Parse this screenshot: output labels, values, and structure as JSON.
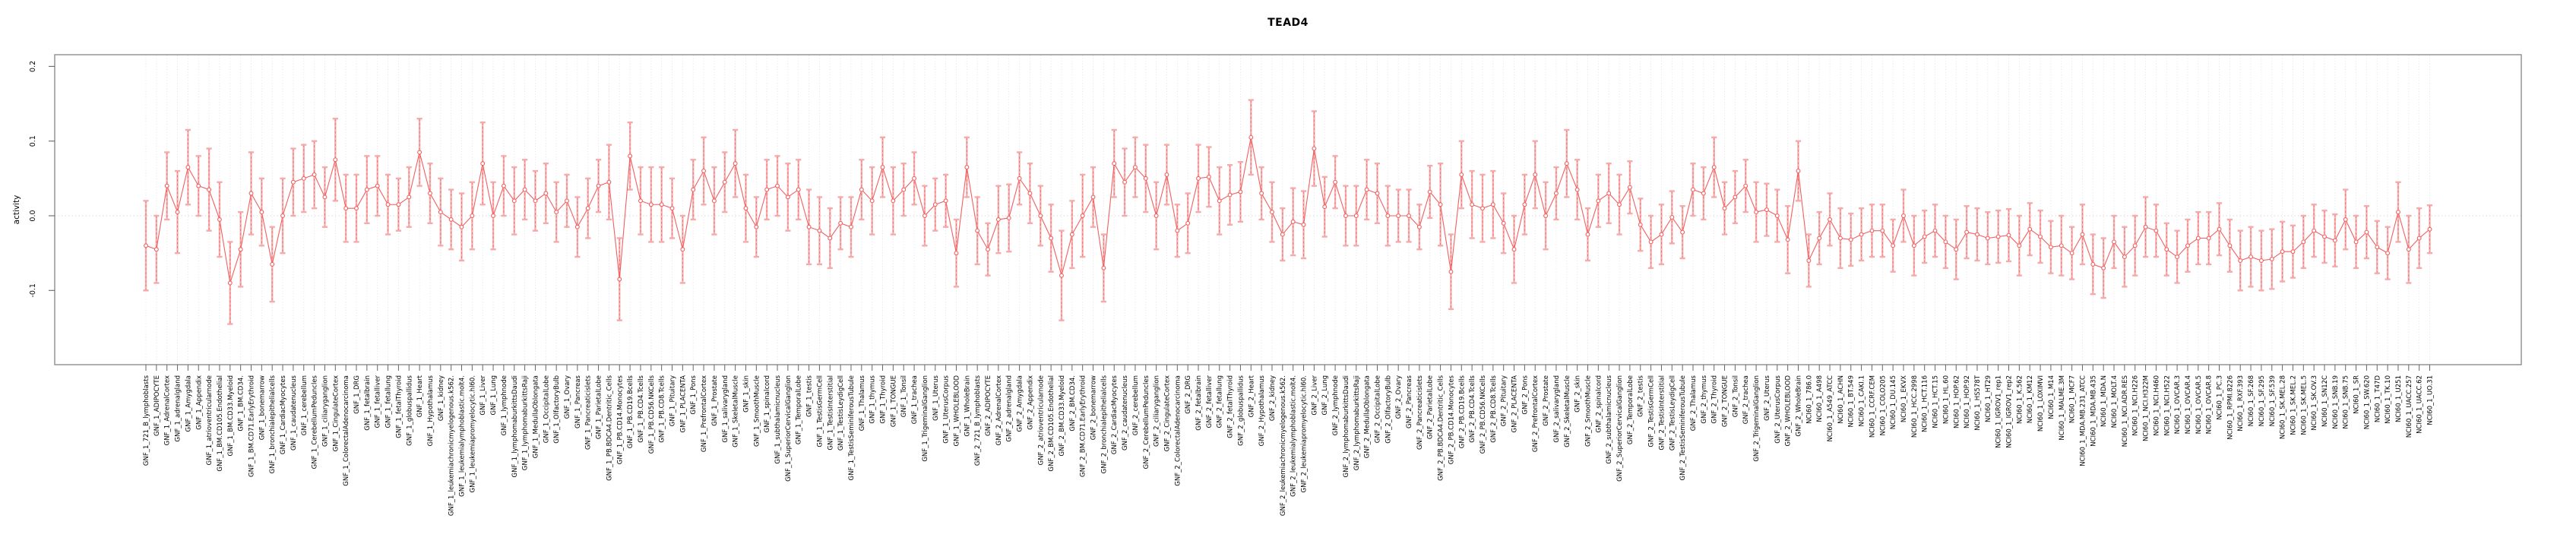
{
  "title": "TEAD4",
  "chart_data": {
    "type": "line",
    "title": "TEAD4",
    "xlabel": "",
    "ylabel": "activity",
    "ylim": [
      -0.2,
      0.215
    ],
    "yticks": [
      0.2,
      0.1,
      0.0,
      -0.1
    ],
    "ytick_labels": [
      "0.2",
      "0.1",
      "0.0",
      "-0.1"
    ],
    "zero_line": true,
    "grid": "vertical dotted gridline at every sample; dotted horizontal line at 0.0",
    "legend": "none",
    "marker": "open-circle",
    "error_bars": true,
    "colors": {
      "series": "#f25f5f",
      "error_pale": "#f6aaaa",
      "grid": "#dfdfdf",
      "zero": "#d8d8d8",
      "border": "#848484",
      "tick": "#666666",
      "text": "#000000",
      "background": "#ffffff"
    },
    "categories": [
      "GNF_1_721_B_lymphoblasts",
      "GNF_1_ADIPOCYTE",
      "GNF_1_AdrenalCortex",
      "GNF_1_adrenalgland",
      "GNF_1_Amygdala",
      "GNF_1_Appendix",
      "GNF_1_atrioventricularnode",
      "GNF_1_BM.CD105.Endothelial",
      "GNF_1_BM.CD33.Myeloid",
      "GNF_1_BM.CD34.",
      "GNF_1_BM.CD71.EarlyErythroid",
      "GNF_1_bonemarrow",
      "GNF_1_bronchialepithelialcells",
      "GNF_1_CardiacMyocytes",
      "GNF_1_caudatenucleus",
      "GNF_1_cerebellum",
      "GNF_1_CerebellumPeduncles",
      "GNF_1_ciliaryganglion",
      "GNF_1_CingulateCortex",
      "GNF_1_ColorectalAdenocarcinoma",
      "GNF_1_DRG",
      "GNF_1_fetalbrain",
      "GNF_1_fetalliver",
      "GNF_1_fetallung",
      "GNF_1_fetalThyroid",
      "GNF_1_globuspallidus",
      "GNF_1_Heart",
      "GNF_1_Hypothalamus",
      "GNF_1_kidney",
      "GNF_1_leukemiachronicmyelogenous.k562.",
      "GNF_1_leukemialymphoblastic.molt4.",
      "GNF_1_leukemiapromyelocytic.hl60.",
      "GNF_1_Liver",
      "GNF_1_Lung",
      "GNF_1_lymphnode",
      "GNF_1_lymphomaburkittsDaudi",
      "GNF_1_lymphomaburkittsRaji",
      "GNF_1_MedullaOblongata",
      "GNF_1_OccipitalLobe",
      "GNF_1_OlfactoryBulb",
      "GNF_1_Ovary",
      "GNF_1_Pancreas",
      "GNF_1_Pancreaticislets",
      "GNF_1_ParietalLobe",
      "GNF_1_PB.BDCA4.Dentritic_Cells",
      "GNF_1_PB.CD14.Monocytes",
      "GNF_1_PB.CD19.Bcells",
      "GNF_1_PB.CD4.Tcells",
      "GNF_1_PB.CD56.NKCells",
      "GNF_1_PB.CD8.Tcells",
      "GNF_1_Pituitary",
      "GNF_1_PLACENTA",
      "GNF_1_Pons",
      "GNF_1_PrefrontalCortex",
      "GNF_1_Prostate",
      "GNF_1_salivarygland",
      "GNF_1_SkeletalMuscle",
      "GNF_1_skin",
      "GNF_1_SmoothMuscle",
      "GNF_1_spinalcord",
      "GNF_1_subthalamicnucleus",
      "GNF_1_SuperiorCervicalGanglion",
      "GNF_1_TemporalLobe",
      "GNF_1_testis",
      "GNF_1_TestisGermCell",
      "GNF_1_TestisInterstitial",
      "GNF_1_TestisLeydigCell",
      "GNF_1_TestisSeminiferousTubule",
      "GNF_1_Thalamus",
      "GNF_1_thymus",
      "GNF_1_Thyroid",
      "GNF_1_TONGUE",
      "GNF_1_Tonsil",
      "GNF_1_trachea",
      "GNF_1_TrigeminalGanglion",
      "GNF_1_Uterus",
      "GNF_1_UterusCorpus",
      "GNF_1_WHOLEBLOOD",
      "GNF_1_WholeBrain",
      "GNF_2_721_B_lymphoblasts",
      "GNF_2_ADIPOCYTE",
      "GNF_2_AdrenalCortex",
      "GNF_2_adrenalgland",
      "GNF_2_Amygdala",
      "GNF_2_Appendix",
      "GNF_2_atrioventricularnode",
      "GNF_2_BM.CD105.Endothelial",
      "GNF_2_BM.CD33.Myeloid",
      "GNF_2_BM.CD34.",
      "GNF_2_BM.CD71.EarlyErythroid",
      "GNF_2_bonemarrow",
      "GNF_2_bronchialepithelialcells",
      "GNF_2_CardiacMyocytes",
      "GNF_2_caudatenucleus",
      "GNF_2_cerebellum",
      "GNF_2_CerebellumPeduncles",
      "GNF_2_ciliaryganglion",
      "GNF_2_CingulateCortex",
      "GNF_2_ColorectalAdenocarcinoma",
      "GNF_2_DRG",
      "GNF_2_fetalbrain",
      "GNF_2_fetalliver",
      "GNF_2_fetallung",
      "GNF_2_fetalThyroid",
      "GNF_2_globuspallidus",
      "GNF_2_Heart",
      "GNF_2_Hypothalamus",
      "GNF_2_kidney",
      "GNF_2_leukemiachronicmyelogenous.k562.",
      "GNF_2_leukemialymphoblastic.molt4.",
      "GNF_2_leukemiapromyelocytic.hl60.",
      "GNF_2_Liver",
      "GNF_2_Lung",
      "GNF_2_lymphnode",
      "GNF_2_lymphomaburkittsDaudi",
      "GNF_2_lymphomaburkittsRaji",
      "GNF_2_MedullaOblongata",
      "GNF_2_OccipitalLobe",
      "GNF_2_OlfactoryBulb",
      "GNF_2_Ovary",
      "GNF_2_Pancreas",
      "GNF_2_Pancreaticislets",
      "GNF_2_ParietalLobe",
      "GNF_2_PB.BDCA4.Dentritic_Cells",
      "GNF_2_PB.CD14.Monocytes",
      "GNF_2_PB.CD19.Bcells",
      "GNF_2_PB.CD4.Tcells",
      "GNF_2_PB.CD56.NKCells",
      "GNF_2_PB.CD8.Tcells",
      "GNF_2_Pituitary",
      "GNF_2_PLACENTA",
      "GNF_2_Pons",
      "GNF_2_PrefrontalCortex",
      "GNF_2_Prostate",
      "GNF_2_salivarygland",
      "GNF_2_SkeletalMuscle",
      "GNF_2_skin",
      "GNF_2_SmoothMuscle",
      "GNF_2_spinalcord",
      "GNF_2_subthalamicnucleus",
      "GNF_2_SuperiorCervicalGanglion",
      "GNF_2_TemporalLobe",
      "GNF_2_testis",
      "GNF_2_TestisGermCell",
      "GNF_2_TestisInterstitial",
      "GNF_2_TestisLeydigCell",
      "GNF_2_TestisSeminiferousTubule",
      "GNF_2_Thalamus",
      "GNF_2_thymus",
      "GNF_2_Thyroid",
      "GNF_2_TONGUE",
      "GNF_2_Tonsil",
      "GNF_2_trachea",
      "GNF_2_TrigeminalGanglion",
      "GNF_2_Uterus",
      "GNF_2_UterusCorpus",
      "GNF_2_WHOLEBLOOD",
      "GNF_2_WholeBrain",
      "NCI60_1_786.0",
      "NCI60_1_A498",
      "NCI60_1_A549_ATCC",
      "NCI60_1_ACHN",
      "NCI60_1_BT.549",
      "NCI60_1_CAKI.1",
      "NCI60_1_CCRF.CEM",
      "NCI60_1_COLO205",
      "NCI60_1_DU.145",
      "NCI60_1_EKVX",
      "NCI60_1_HCC.2998",
      "NCI60_1_HCT.116",
      "NCI60_1_HCT.15",
      "NCI60_1_HL.60",
      "NCI60_1_HOP.62",
      "NCI60_1_HOP.92",
      "NCI60_1_HS578T",
      "NCI60_1_HT29",
      "NCI60_1_IGROV1_rep1",
      "NCI60_1_IGROV1_rep2",
      "NCI60_1_K.562",
      "NCI60_1_KM12",
      "NCI60_1_LOXIMVI",
      "NCI60_1_M14",
      "NCI60_1_MALME.3M",
      "NCI60_1_MCF7",
      "NCI60_1_MDA.MB.231_ATCC",
      "NCI60_1_MDA.MB.435",
      "NCI60_1_MDA.N",
      "NCI60_1_MOLT.4",
      "NCI60_1_NCI.ADR.RES",
      "NCI60_1_NCI.H226",
      "NCI60_1_NCI.H322M",
      "NCI60_1_NCI.H460",
      "NCI60_1_NCI.H522",
      "NCI60_1_OVCAR.3",
      "NCI60_1_OVCAR.4",
      "NCI60_1_OVCAR.5",
      "NCI60_1_OVCAR.8",
      "NCI60_1_PC.3",
      "NCI60_1_RPMI.8226",
      "NCI60_1_RXF.393",
      "NCI60_1_SF.268",
      "NCI60_1_SF.295",
      "NCI60_1_SF.539",
      "NCI60_1_SK.MEL.28",
      "NCI60_1_SK.MEL.2",
      "NCI60_1_SK.MEL.5",
      "NCI60_1_SK.OV.3",
      "NCI60_1_SN12C",
      "NCI60_1_SNB.19",
      "NCI60_1_SNB.75",
      "NCI60_1_SR",
      "NCI60_1_SW.620",
      "NCI60_1_T47D",
      "NCI60_1_TK.10",
      "NCI60_1_U251",
      "NCI60_1_UACC.257",
      "NCI60_1_UACC.62",
      "NCI60_1_UO.31"
    ],
    "values": [
      -0.04,
      -0.045,
      0.04,
      0.005,
      0.065,
      0.04,
      0.035,
      -0.005,
      -0.09,
      -0.045,
      0.03,
      0.005,
      -0.065,
      0,
      0.045,
      0.05,
      0.055,
      0.025,
      0.075,
      0.01,
      0.01,
      0.035,
      0.04,
      0.015,
      0.015,
      0.025,
      0.085,
      0.03,
      0.005,
      -0.005,
      -0.015,
      0,
      0.07,
      0,
      0.04,
      0.02,
      0.035,
      0.02,
      0.03,
      0.005,
      0.02,
      -0.015,
      0.01,
      0.04,
      0.045,
      -0.085,
      0.08,
      0.02,
      0.015,
      0.015,
      0.01,
      -0.045,
      0.035,
      0.06,
      0.02,
      0.045,
      0.07,
      0.01,
      -0.015,
      0.035,
      0.04,
      0.025,
      0.035,
      -0.015,
      -0.02,
      -0.03,
      -0.01,
      -0.015,
      0.035,
      0.02,
      0.065,
      0.02,
      0.035,
      0.05,
      0,
      0.015,
      0.02,
      -0.05,
      0.065,
      -0.02,
      -0.045,
      -0.005,
      -0.003,
      0.05,
      0.03,
      0,
      -0.03,
      -0.08,
      -0.025,
      0,
      0.025,
      -0.07,
      0.07,
      0.045,
      0.065,
      0.05,
      0,
      0.055,
      -0.02,
      -0.01,
      0.05,
      0.052,
      0.02,
      0.028,
      0.032,
      0.105,
      0.03,
      0.005,
      -0.025,
      -0.008,
      -0.012,
      0.09,
      0.012,
      0.045,
      0,
      0,
      0.035,
      0.03,
      0,
      0,
      0,
      -0.015,
      0.032,
      0.015,
      -0.075,
      0.055,
      0.015,
      0.01,
      0.015,
      -0.01,
      -0.045,
      0.015,
      0.055,
      0,
      0.03,
      0.07,
      0.035,
      -0.025,
      0.02,
      0.03,
      0.015,
      0.038,
      -0.012,
      -0.035,
      -0.025,
      -0.002,
      -0.022,
      0.035,
      0.03,
      0.065,
      0.01,
      0.025,
      0.04,
      0.005,
      0.008,
      0,
      -0.032,
      0.06,
      -0.06,
      -0.03,
      -0.005,
      -0.03,
      -0.032,
      -0.025,
      -0.02,
      -0.02,
      -0.04,
      0,
      -0.04,
      -0.028,
      -0.02,
      -0.035,
      -0.045,
      -0.022,
      -0.025,
      -0.03,
      -0.028,
      -0.026,
      -0.04,
      -0.018,
      -0.028,
      -0.042,
      -0.04,
      -0.05,
      -0.025,
      -0.065,
      -0.07,
      -0.035,
      -0.055,
      -0.04,
      -0.015,
      -0.02,
      -0.045,
      -0.055,
      -0.04,
      -0.03,
      -0.03,
      -0.018,
      -0.04,
      -0.06,
      -0.055,
      -0.06,
      -0.058,
      -0.048,
      -0.048,
      -0.035,
      -0.02,
      -0.028,
      -0.033,
      -0.005,
      -0.035,
      -0.022,
      -0.042,
      -0.05,
      0.005,
      -0.045,
      -0.03,
      -0.018
    ],
    "errors": [
      0.06,
      0.045,
      0.045,
      0.055,
      0.05,
      0.04,
      0.055,
      0.05,
      0.055,
      0.05,
      0.055,
      0.045,
      0.05,
      0.05,
      0.045,
      0.045,
      0.045,
      0.04,
      0.055,
      0.045,
      0.045,
      0.045,
      0.04,
      0.04,
      0.035,
      0.04,
      0.045,
      0.04,
      0.045,
      0.04,
      0.045,
      0.045,
      0.055,
      0.045,
      0.04,
      0.045,
      0.04,
      0.04,
      0.04,
      0.04,
      0.035,
      0.04,
      0.04,
      0.035,
      0.05,
      0.055,
      0.045,
      0.045,
      0.05,
      0.05,
      0.04,
      0.045,
      0.04,
      0.045,
      0.045,
      0.04,
      0.045,
      0.045,
      0.04,
      0.04,
      0.04,
      0.045,
      0.04,
      0.05,
      0.045,
      0.04,
      0.035,
      0.04,
      0.04,
      0.045,
      0.04,
      0.045,
      0.035,
      0.035,
      0.04,
      0.035,
      0.035,
      0.045,
      0.04,
      0.045,
      0.035,
      0.045,
      0.045,
      0.035,
      0.04,
      0.04,
      0.045,
      0.06,
      0.045,
      0.055,
      0.04,
      0.045,
      0.045,
      0.045,
      0.04,
      0.045,
      0.045,
      0.04,
      0.035,
      0.04,
      0.045,
      0.04,
      0.045,
      0.04,
      0.04,
      0.05,
      0.035,
      0.04,
      0.035,
      0.045,
      0.045,
      0.05,
      0.04,
      0.035,
      0.04,
      0.04,
      0.04,
      0.04,
      0.04,
      0.035,
      0.035,
      0.03,
      0.035,
      0.055,
      0.05,
      0.045,
      0.045,
      0.045,
      0.045,
      0.04,
      0.045,
      0.04,
      0.045,
      0.045,
      0.035,
      0.045,
      0.04,
      0.035,
      0.035,
      0.04,
      0.04,
      0.035,
      0.035,
      0.035,
      0.04,
      0.035,
      0.035,
      0.035,
      0.035,
      0.04,
      0.035,
      0.035,
      0.035,
      0.04,
      0.035,
      0.035,
      0.045,
      0.04,
      0.035,
      0.035,
      0.035,
      0.04,
      0.035,
      0.035,
      0.035,
      0.035,
      0.035,
      0.035,
      0.04,
      0.035,
      0.035,
      0.035,
      0.04,
      0.035,
      0.035,
      0.035,
      0.035,
      0.035,
      0.04,
      0.035,
      0.035,
      0.035,
      0.04,
      0.035,
      0.04,
      0.04,
      0.04,
      0.035,
      0.04,
      0.04,
      0.04,
      0.035,
      0.035,
      0.035,
      0.035,
      0.035,
      0.035,
      0.035,
      0.035,
      0.04,
      0.04,
      0.04,
      0.04,
      0.04,
      0.035,
      0.035,
      0.035,
      0.035,
      0.035,
      0.04,
      0.035,
      0.035,
      0.035,
      0.035,
      0.04,
      0.045,
      0.04,
      0.032
    ]
  }
}
